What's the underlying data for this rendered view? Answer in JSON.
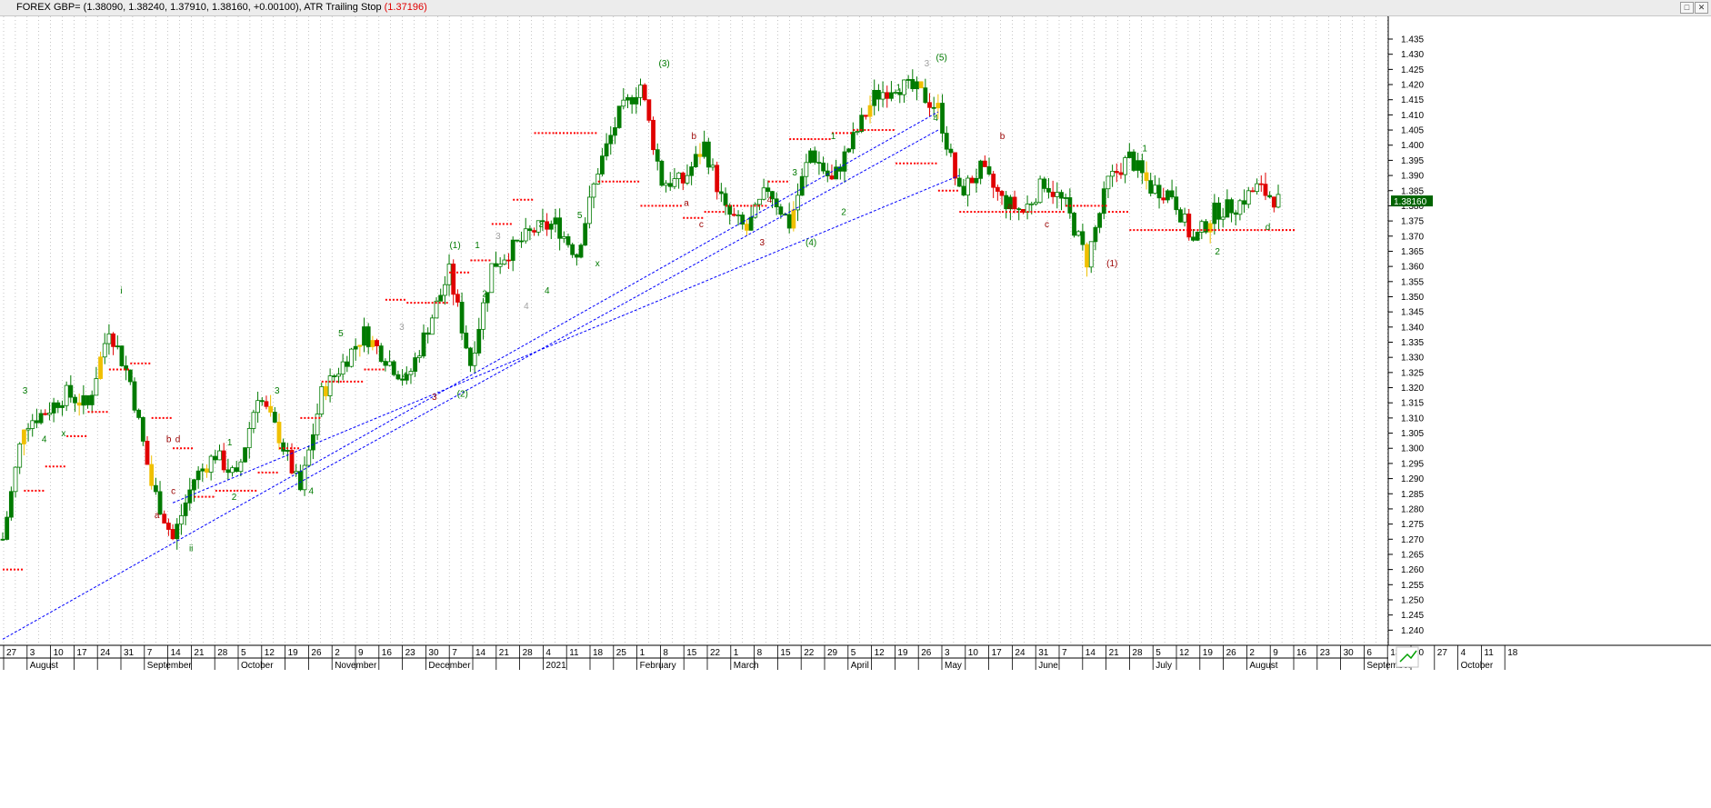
{
  "window": {
    "title_prefix": "FOREX GBP= ",
    "title_ohlc": "(1.38090, 1.38240, 1.37910, 1.38160, +0.00100), ",
    "indicator_name": "ATR Trailing Stop ",
    "indicator_value": "(1.37196)",
    "restore_icon": "restore-icon",
    "close_icon": "close-icon"
  },
  "chart_data": {
    "type": "candlestick",
    "symbol": "FOREX GBP=",
    "last_price_label": "1.38160",
    "ylim": [
      1.235,
      1.4425
    ],
    "y_ticks": [
      "1.240",
      "1.245",
      "1.250",
      "1.255",
      "1.260",
      "1.265",
      "1.270",
      "1.275",
      "1.280",
      "1.285",
      "1.290",
      "1.295",
      "1.300",
      "1.305",
      "1.310",
      "1.315",
      "1.320",
      "1.325",
      "1.330",
      "1.335",
      "1.340",
      "1.345",
      "1.350",
      "1.355",
      "1.360",
      "1.365",
      "1.370",
      "1.375",
      "1.380",
      "1.385",
      "1.390",
      "1.395",
      "1.400",
      "1.405",
      "1.410",
      "1.415",
      "1.420",
      "1.425",
      "1.430",
      "1.435"
    ],
    "x_day_labels": [
      "27",
      "3",
      "10",
      "17",
      "24",
      "31",
      "7",
      "14",
      "21",
      "28",
      "5",
      "12",
      "19",
      "26",
      "2",
      "9",
      "16",
      "23",
      "30",
      "7",
      "14",
      "21",
      "28",
      "4",
      "11",
      "18",
      "25",
      "1",
      "8",
      "15",
      "22",
      "1",
      "8",
      "15",
      "22",
      "29",
      "5",
      "12",
      "19",
      "26",
      "3",
      "10",
      "17",
      "24",
      "31",
      "7",
      "14",
      "21",
      "28",
      "5",
      "12",
      "19",
      "26",
      "2",
      "9",
      "16",
      "23",
      "30",
      "6",
      "13",
      "20",
      "27",
      "4",
      "11",
      "18"
    ],
    "x_month_labels": [
      {
        "label": "August",
        "week": 1
      },
      {
        "label": "September",
        "week": 6
      },
      {
        "label": "October",
        "week": 10
      },
      {
        "label": "November",
        "week": 14
      },
      {
        "label": "December",
        "week": 18
      },
      {
        "label": "2021",
        "week": 23
      },
      {
        "label": "February",
        "week": 27
      },
      {
        "label": "March",
        "week": 31
      },
      {
        "label": "April",
        "week": 36
      },
      {
        "label": "May",
        "week": 40
      },
      {
        "label": "June",
        "week": 44
      },
      {
        "label": "July",
        "week": 49
      },
      {
        "label": "August",
        "week": 53
      },
      {
        "label": "September",
        "week": 58
      },
      {
        "label": "October",
        "week": 62
      }
    ],
    "price_path": [
      [
        0,
        1.27
      ],
      [
        1,
        1.308
      ],
      [
        2,
        1.312
      ],
      [
        3,
        1.318
      ],
      [
        4,
        1.314
      ],
      [
        5,
        1.34
      ],
      [
        6,
        1.322
      ],
      [
        7,
        1.288
      ],
      [
        8,
        1.27
      ],
      [
        9,
        1.29
      ],
      [
        10,
        1.298
      ],
      [
        11,
        1.29
      ],
      [
        12,
        1.318
      ],
      [
        13,
        1.304
      ],
      [
        14,
        1.286
      ],
      [
        15,
        1.318
      ],
      [
        16,
        1.328
      ],
      [
        17,
        1.338
      ],
      [
        18,
        1.33
      ],
      [
        19,
        1.322
      ],
      [
        20,
        1.34
      ],
      [
        21,
        1.358
      ],
      [
        22,
        1.328
      ],
      [
        23,
        1.36
      ],
      [
        24,
        1.366
      ],
      [
        25,
        1.372
      ],
      [
        26,
        1.374
      ],
      [
        27,
        1.364
      ],
      [
        28,
        1.392
      ],
      [
        29,
        1.41
      ],
      [
        30,
        1.42
      ],
      [
        31,
        1.388
      ],
      [
        32,
        1.388
      ],
      [
        33,
        1.4
      ],
      [
        34,
        1.378
      ],
      [
        35,
        1.372
      ],
      [
        36,
        1.386
      ],
      [
        37,
        1.374
      ],
      [
        38,
        1.398
      ],
      [
        39,
        1.388
      ],
      [
        40,
        1.402
      ],
      [
        41,
        1.416
      ],
      [
        42,
        1.42
      ],
      [
        43,
        1.418
      ],
      [
        44,
        1.412
      ],
      [
        45,
        1.384
      ],
      [
        46,
        1.392
      ],
      [
        47,
        1.382
      ],
      [
        48,
        1.378
      ],
      [
        49,
        1.388
      ],
      [
        50,
        1.38
      ],
      [
        51,
        1.362
      ],
      [
        52,
        1.388
      ],
      [
        53,
        1.396
      ],
      [
        54,
        1.386
      ],
      [
        55,
        1.384
      ],
      [
        56,
        1.368
      ],
      [
        57,
        1.378
      ],
      [
        58,
        1.38
      ],
      [
        59,
        1.386
      ],
      [
        60,
        1.3816
      ]
    ],
    "trailing_stop": [
      [
        0,
        1.26
      ],
      [
        1,
        1.286
      ],
      [
        2,
        1.294
      ],
      [
        3,
        1.304
      ],
      [
        4,
        1.312
      ],
      [
        5,
        1.326
      ],
      [
        6,
        1.328
      ],
      [
        7,
        1.31
      ],
      [
        8,
        1.3
      ],
      [
        9,
        1.284
      ],
      [
        10,
        1.286
      ],
      [
        11,
        1.286
      ],
      [
        12,
        1.292
      ],
      [
        13,
        1.3
      ],
      [
        14,
        1.31
      ],
      [
        15,
        1.322
      ],
      [
        16,
        1.322
      ],
      [
        17,
        1.326
      ],
      [
        18,
        1.349
      ],
      [
        19,
        1.348
      ],
      [
        20,
        1.348
      ],
      [
        21,
        1.358
      ],
      [
        22,
        1.362
      ],
      [
        23,
        1.374
      ],
      [
        24,
        1.382
      ],
      [
        25,
        1.404
      ],
      [
        26,
        1.404
      ],
      [
        27,
        1.404
      ],
      [
        28,
        1.388
      ],
      [
        29,
        1.388
      ],
      [
        30,
        1.38
      ],
      [
        31,
        1.38
      ],
      [
        32,
        1.376
      ],
      [
        33,
        1.378
      ],
      [
        34,
        1.38
      ],
      [
        35,
        1.38
      ],
      [
        36,
        1.388
      ],
      [
        37,
        1.402
      ],
      [
        38,
        1.402
      ],
      [
        39,
        1.404
      ],
      [
        40,
        1.405
      ],
      [
        41,
        1.405
      ],
      [
        42,
        1.394
      ],
      [
        43,
        1.394
      ],
      [
        44,
        1.385
      ],
      [
        45,
        1.378
      ],
      [
        46,
        1.378
      ],
      [
        47,
        1.378
      ],
      [
        48,
        1.378
      ],
      [
        49,
        1.378
      ],
      [
        50,
        1.38
      ],
      [
        51,
        1.38
      ],
      [
        52,
        1.378
      ],
      [
        53,
        1.372
      ],
      [
        54,
        1.372
      ],
      [
        55,
        1.372
      ],
      [
        56,
        1.372
      ],
      [
        57,
        1.372
      ],
      [
        58,
        1.372
      ],
      [
        59,
        1.372
      ],
      [
        60,
        1.372
      ]
    ],
    "trendlines": [
      {
        "from": [
          0,
          1.237
        ],
        "to": [
          44,
          1.411
        ]
      },
      {
        "from": [
          13,
          1.285
        ],
        "to": [
          44,
          1.405
        ]
      },
      {
        "from": [
          8,
          1.282
        ],
        "to": [
          45,
          1.39
        ]
      }
    ],
    "wave_labels": [
      {
        "text": "3",
        "week": 1.5,
        "price": 1.318,
        "color": "green"
      },
      {
        "text": "4",
        "week": 2.8,
        "price": 1.302,
        "color": "green"
      },
      {
        "text": "x",
        "week": 4.1,
        "price": 1.304,
        "color": "green"
      },
      {
        "text": "i",
        "week": 8.0,
        "price": 1.351,
        "color": "green"
      },
      {
        "text": "a",
        "week": 10.4,
        "price": 1.277,
        "color": "darkred"
      },
      {
        "text": "b",
        "week": 11.2,
        "price": 1.302,
        "color": "darkred"
      },
      {
        "text": "d",
        "week": 11.8,
        "price": 1.302,
        "color": "darkred"
      },
      {
        "text": "c",
        "week": 11.5,
        "price": 1.285,
        "color": "darkred"
      },
      {
        "text": "ii",
        "week": 12.7,
        "price": 1.266,
        "color": "green"
      },
      {
        "text": "1",
        "week": 15.3,
        "price": 1.301,
        "color": "green"
      },
      {
        "text": "2",
        "week": 15.6,
        "price": 1.283,
        "color": "green"
      },
      {
        "text": "3",
        "week": 18.5,
        "price": 1.318,
        "color": "green"
      },
      {
        "text": "4",
        "week": 20.8,
        "price": 1.285,
        "color": "green"
      },
      {
        "text": "5",
        "week": 22.8,
        "price": 1.337,
        "color": "green"
      },
      {
        "text": "3",
        "week": 26.9,
        "price": 1.339,
        "color": "grey"
      },
      {
        "text": "4",
        "week": 27.1,
        "price": 1.323,
        "color": "green"
      },
      {
        "text": "3",
        "week": 29.1,
        "price": 1.316,
        "color": "darkred"
      },
      {
        "text": "(1)",
        "week": 30.5,
        "price": 1.366,
        "color": "green"
      },
      {
        "text": "(2)",
        "week": 31.0,
        "price": 1.317,
        "color": "green"
      },
      {
        "text": "1",
        "week": 32.0,
        "price": 1.366,
        "color": "green"
      },
      {
        "text": "2",
        "week": 32.5,
        "price": 1.35,
        "color": "green"
      },
      {
        "text": "3",
        "week": 33.4,
        "price": 1.369,
        "color": "grey"
      },
      {
        "text": "4",
        "week": 35.3,
        "price": 1.346,
        "color": "grey"
      },
      {
        "text": "3",
        "week": 36.3,
        "price": 1.373,
        "color": "green"
      },
      {
        "text": "4",
        "week": 36.7,
        "price": 1.351,
        "color": "green"
      },
      {
        "text": "5",
        "week": 38.9,
        "price": 1.376,
        "color": "green"
      },
      {
        "text": "x",
        "week": 40.1,
        "price": 1.36,
        "color": "green"
      },
      {
        "text": "(3)",
        "week": 44.6,
        "price": 1.426,
        "color": "green"
      },
      {
        "text": "b",
        "week": 46.6,
        "price": 1.402,
        "color": "darkred"
      },
      {
        "text": "a",
        "week": 46.1,
        "price": 1.38,
        "color": "darkred"
      },
      {
        "text": "c",
        "week": 47.1,
        "price": 1.373,
        "color": "darkred"
      },
      {
        "text": "4",
        "week": 51.7,
        "price": 1.381,
        "color": "darkred"
      },
      {
        "text": "3",
        "week": 51.2,
        "price": 1.367,
        "color": "darkred"
      },
      {
        "text": "3",
        "week": 53.4,
        "price": 1.39,
        "color": "green"
      },
      {
        "text": "(4)",
        "week": 54.5,
        "price": 1.367,
        "color": "green"
      },
      {
        "text": "1",
        "week": 56.0,
        "price": 1.402,
        "color": "green"
      },
      {
        "text": "2",
        "week": 56.7,
        "price": 1.377,
        "color": "green"
      },
      {
        "text": "1",
        "week": 60.4,
        "price": 1.418,
        "color": "green"
      },
      {
        "text": "3",
        "week": 62.3,
        "price": 1.426,
        "color": "grey"
      },
      {
        "text": "(5)",
        "week": 63.3,
        "price": 1.428,
        "color": "green"
      },
      {
        "text": "4",
        "week": 62.9,
        "price": 1.408,
        "color": "green"
      },
      {
        "text": "b",
        "week": 67.4,
        "price": 1.402,
        "color": "darkred"
      },
      {
        "text": "a",
        "week": 67.9,
        "price": 1.379,
        "color": "darkred"
      },
      {
        "text": "c",
        "week": 70.4,
        "price": 1.373,
        "color": "darkred"
      },
      {
        "text": "(1)",
        "week": 74.8,
        "price": 1.36,
        "color": "darkred"
      },
      {
        "text": "1",
        "week": 77.0,
        "price": 1.398,
        "color": "green"
      },
      {
        "text": "2",
        "week": 81.9,
        "price": 1.364,
        "color": "green"
      },
      {
        "text": "d",
        "week": 85.3,
        "price": 1.372,
        "color": "green"
      }
    ],
    "colors": {
      "bull": "#007a00",
      "bear": "#e00000",
      "neutral": "#f0c000",
      "accent": "#8a00a0",
      "trailing_stop": "#ff0000",
      "trendline": "#0000ff",
      "grid": "#a0a0a0",
      "label_green": "#007a00",
      "label_darkred": "#9a0000",
      "label_grey": "#a0a0a0",
      "price_tag_bg": "#006400"
    },
    "grid": true,
    "grid_style": "dotted vertical"
  }
}
